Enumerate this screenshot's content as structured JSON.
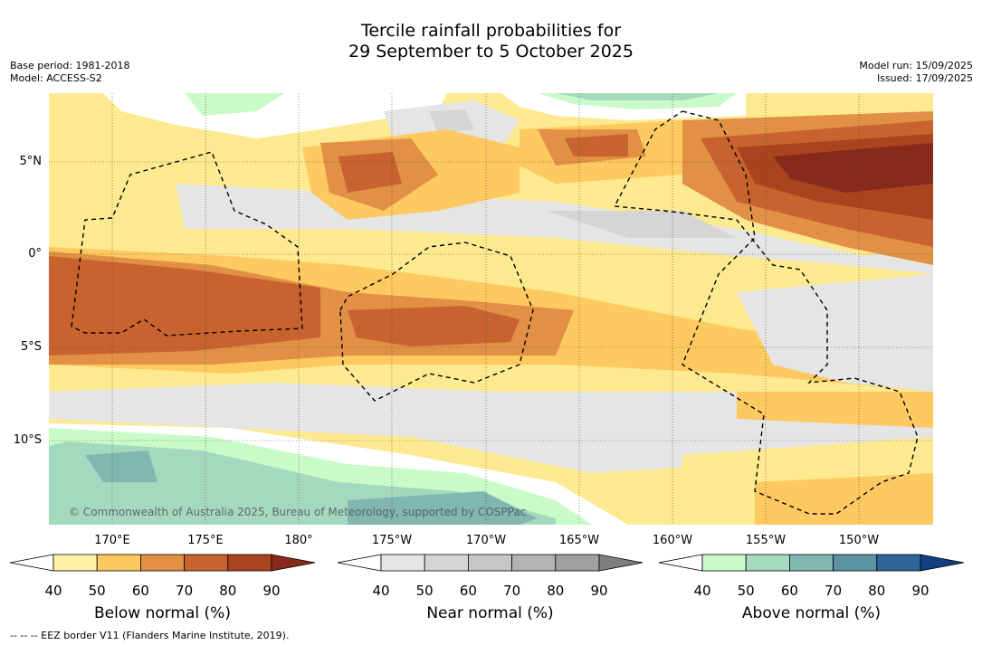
{
  "title_line1": "Tercile rainfall probabilities for",
  "title_line2": "29 September to 5 October 2025",
  "meta_left": {
    "base_period": "Base period: 1981-2018",
    "model": "Model: ACCESS-S2"
  },
  "meta_right": {
    "model_run": "Model run: 15/09/2025",
    "issued": "Issued: 17/09/2025"
  },
  "lon_labels": [
    "170°E",
    "175°E",
    "180°",
    "175°W",
    "170°W",
    "165°W",
    "160°W",
    "155°W",
    "150°W"
  ],
  "lat_labels": [
    "5°N",
    "0°",
    "5°S",
    "10°S"
  ],
  "copyright": "© Commonwealth of Australia 2025, Bureau of Meteorology, supported by COSPPac",
  "footnote": "--  --  -- EEZ border V11 (Flanders Marine Institute, 2019).",
  "colorbars": [
    {
      "label": "Below normal (%)",
      "ticks": [
        "40",
        "50",
        "60",
        "70",
        "80",
        "90"
      ],
      "colors": [
        "#ffffff",
        "#fff0a8",
        "#fec960",
        "#e19046",
        "#c8632f",
        "#a9441f",
        "#87291b"
      ]
    },
    {
      "label": "Near normal (%)",
      "ticks": [
        "40",
        "50",
        "60",
        "70",
        "80",
        "90"
      ],
      "colors": [
        "#ffffff",
        "#e5e5e5",
        "#d5d5d5",
        "#c6c6c6",
        "#b3b3b3",
        "#a0a0a0",
        "#7e7e7e"
      ]
    },
    {
      "label": "Above normal (%)",
      "ticks": [
        "40",
        "50",
        "60",
        "70",
        "80",
        "90"
      ],
      "colors": [
        "#ffffff",
        "#c9fbc8",
        "#a5d9bf",
        "#80b7b1",
        "#5b93a3",
        "#2c6598",
        "#123f80"
      ]
    }
  ]
}
